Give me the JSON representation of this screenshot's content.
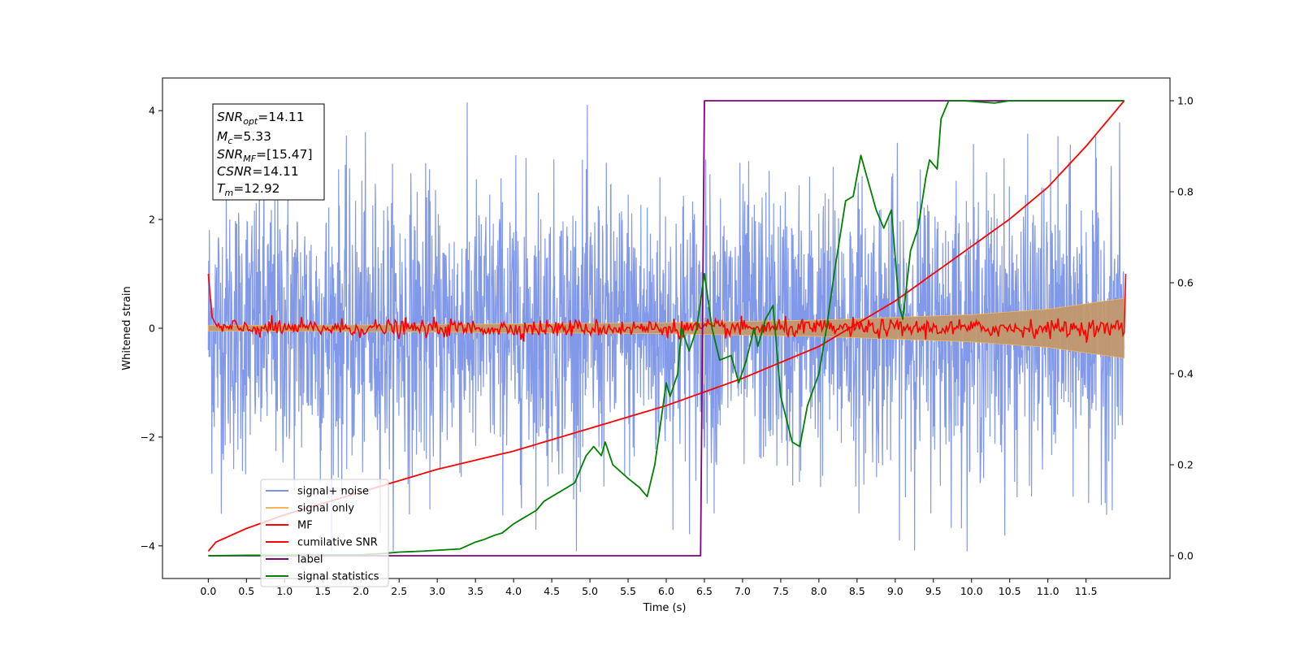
{
  "chart_data": {
    "type": "line",
    "xlabel": "Time (s)",
    "ylabel": "Whitened strain",
    "xlim": [
      -0.6,
      12.6
    ],
    "ylim": [
      -4.6,
      4.6
    ],
    "y2lim": [
      -0.05,
      1.05
    ],
    "x_ticks": [
      0.0,
      0.5,
      1.0,
      1.5,
      2.0,
      2.5,
      3.0,
      3.5,
      4.0,
      4.5,
      5.0,
      5.5,
      6.0,
      6.5,
      7.0,
      7.5,
      8.0,
      8.5,
      9.0,
      9.5,
      10.0,
      10.5,
      11.0,
      11.5
    ],
    "x_tick_labels": [
      "0.0",
      "0.5",
      "1.0",
      "1.5",
      "2.0",
      "2.5",
      "3.0",
      "3.5",
      "4.0",
      "4.5",
      "5.0",
      "5.5",
      "6.0",
      "6.5",
      "7.0",
      "7.5",
      "8.0",
      "8.5",
      "9.0",
      "9.5",
      "10.0",
      "10.5",
      "11.0",
      "11.5"
    ],
    "y_ticks": [
      -4,
      -2,
      0,
      2,
      4
    ],
    "y_tick_labels": [
      "−4",
      "−2",
      "0",
      "2",
      "4"
    ],
    "y2_ticks": [
      0.0,
      0.2,
      0.4,
      0.6,
      0.8,
      1.0
    ],
    "y2_tick_labels": [
      "0.0",
      "0.2",
      "0.4",
      "0.6",
      "0.8",
      "1.0"
    ],
    "grid": false,
    "legend_position": "lower-left",
    "info_box": {
      "position": "upper-left",
      "lines": [
        {
          "var": "SNR",
          "sub": "opt",
          "value": "=14.11"
        },
        {
          "var": "M",
          "sub": "c",
          "value": "=5.33"
        },
        {
          "var": "SNR",
          "sub": "MF",
          "value": "=[15.47]"
        },
        {
          "var": "CSNR",
          "sub": "",
          "value": "=14.11"
        },
        {
          "var": "T",
          "sub": "m",
          "value": "=12.92"
        }
      ]
    },
    "series": [
      {
        "name": "signal+ noise",
        "axis": "left",
        "color": "#7b94e8",
        "kind": "noise_band",
        "x_range": [
          0.0,
          12.0
        ],
        "approx_envelope": [
          -4.1,
          4.15
        ]
      },
      {
        "name": "signal only",
        "axis": "left",
        "color": "#f5b55c",
        "kind": "chirp_envelope",
        "x": [
          0.0,
          2.0,
          4.0,
          6.0,
          8.0,
          10.0,
          11.0,
          12.0
        ],
        "amplitude": [
          0.05,
          0.06,
          0.08,
          0.1,
          0.15,
          0.25,
          0.35,
          0.55
        ]
      },
      {
        "name": "MF",
        "axis": "left",
        "color": "#ff0000",
        "kind": "noisy_line",
        "x": [
          0.0,
          0.05,
          0.1,
          12.0,
          12.02
        ],
        "y": [
          1.0,
          0.2,
          0.05,
          0.0,
          1.0
        ],
        "baseline_noise": 0.08
      },
      {
        "name": "cumilative SNR",
        "axis": "right",
        "color": "#ff0000",
        "x": [
          0.0,
          0.1,
          0.5,
          1.0,
          2.0,
          3.0,
          4.0,
          5.0,
          6.0,
          7.0,
          8.0,
          8.5,
          9.0,
          9.5,
          10.0,
          10.5,
          11.0,
          11.5,
          12.0
        ],
        "y": [
          0.01,
          0.03,
          0.06,
          0.09,
          0.14,
          0.19,
          0.23,
          0.28,
          0.33,
          0.39,
          0.46,
          0.51,
          0.56,
          0.62,
          0.68,
          0.74,
          0.81,
          0.9,
          1.0
        ]
      },
      {
        "name": "label",
        "axis": "right",
        "color": "#800080",
        "x": [
          0.0,
          6.45,
          6.5,
          12.0
        ],
        "y": [
          0.0,
          0.0,
          1.0,
          1.0
        ]
      },
      {
        "name": "signal statistics",
        "axis": "right",
        "color": "#008000",
        "x": [
          0.0,
          0.5,
          1.0,
          1.5,
          2.0,
          2.3,
          2.5,
          2.8,
          3.0,
          3.3,
          3.5,
          3.6,
          3.75,
          3.85,
          4.0,
          4.1,
          4.2,
          4.3,
          4.4,
          4.6,
          4.8,
          4.9,
          4.95,
          5.05,
          5.15,
          5.2,
          5.3,
          5.5,
          5.65,
          5.75,
          5.85,
          6.0,
          6.05,
          6.15,
          6.2,
          6.3,
          6.4,
          6.5,
          6.6,
          6.7,
          6.85,
          6.95,
          7.05,
          7.15,
          7.2,
          7.3,
          7.4,
          7.5,
          7.65,
          7.75,
          7.85,
          8.0,
          8.1,
          8.2,
          8.35,
          8.45,
          8.55,
          8.65,
          8.75,
          8.85,
          8.95,
          9.05,
          9.1,
          9.2,
          9.3,
          9.4,
          9.45,
          9.55,
          9.6,
          9.7,
          9.9,
          10.3,
          10.5,
          11.0,
          11.5,
          12.0
        ],
        "y": [
          0.0,
          0.001,
          0.001,
          0.002,
          0.002,
          0.005,
          0.008,
          0.01,
          0.012,
          0.015,
          0.03,
          0.035,
          0.045,
          0.05,
          0.07,
          0.08,
          0.09,
          0.1,
          0.12,
          0.14,
          0.16,
          0.2,
          0.22,
          0.24,
          0.22,
          0.25,
          0.2,
          0.17,
          0.15,
          0.13,
          0.2,
          0.38,
          0.35,
          0.4,
          0.5,
          0.45,
          0.5,
          0.62,
          0.5,
          0.43,
          0.44,
          0.38,
          0.43,
          0.5,
          0.46,
          0.52,
          0.55,
          0.35,
          0.25,
          0.24,
          0.33,
          0.4,
          0.5,
          0.62,
          0.78,
          0.79,
          0.88,
          0.82,
          0.76,
          0.72,
          0.76,
          0.55,
          0.52,
          0.67,
          0.72,
          0.83,
          0.87,
          0.85,
          0.96,
          1.0,
          1.0,
          0.995,
          1.0,
          1.0,
          1.0,
          1.0
        ]
      }
    ]
  }
}
